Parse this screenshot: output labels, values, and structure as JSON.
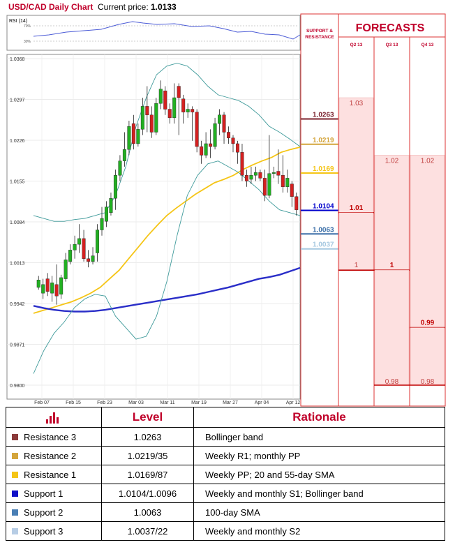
{
  "header": {
    "title": "USD/CAD Daily Chart",
    "price_label": "Current price:",
    "price_value": "1.0133"
  },
  "rsi": {
    "label": "RSI (14)",
    "ticks": [
      "70%",
      "30%"
    ]
  },
  "chart_data": {
    "type": "candlestick",
    "y_ticks": [
      "1.0368",
      "1.0297",
      "1.0226",
      "1.0155",
      "1.0084",
      "1.0013",
      "0.9942",
      "0.9871",
      "0.9800"
    ],
    "ylim": [
      0.98,
      1.0368
    ],
    "x_ticks": [
      "Feb 07",
      "Feb 15",
      "Feb 23",
      "Mar 03",
      "Mar 11",
      "Mar 19",
      "Mar 27",
      "Apr 04",
      "Apr 12"
    ],
    "candles": [
      [
        0.997,
        0.9983,
        0.9966,
        0.999
      ],
      [
        0.996,
        0.9975,
        0.995,
        0.9985
      ],
      [
        0.9985,
        0.9963,
        0.9955,
        0.9995
      ],
      [
        0.996,
        0.9978,
        0.9945,
        0.999
      ],
      [
        0.9975,
        0.9955,
        0.994,
        1.001
      ],
      [
        0.9958,
        0.9987,
        0.995,
        0.9992
      ],
      [
        0.9985,
        1.0018,
        0.998,
        1.003
      ],
      [
        1.0015,
        1.0035,
        1.001,
        1.0045
      ],
      [
        1.0035,
        1.0045,
        1.002,
        1.006
      ],
      [
        1.0045,
        1.0055,
        1.003,
        1.008
      ],
      [
        1.0055,
        1.002,
        1.0015,
        1.007
      ],
      [
        1.002,
        1.0015,
        1.0005,
        1.0035
      ],
      [
        1.0015,
        1.0025,
        1.001,
        1.004
      ],
      [
        1.003,
        1.007,
        1.0015,
        1.008
      ],
      [
        1.007,
        1.009,
        1.006,
        1.011
      ],
      [
        1.0085,
        1.011,
        1.0075,
        1.012
      ],
      [
        1.01,
        1.0125,
        1.0095,
        1.0135
      ],
      [
        1.0125,
        1.0165,
        1.0105,
        1.0175
      ],
      [
        1.0165,
        1.019,
        1.0155,
        1.02
      ],
      [
        1.019,
        1.021,
        1.018,
        1.024
      ],
      [
        1.021,
        1.025,
        1.02,
        1.026
      ],
      [
        1.0255,
        1.022,
        1.021,
        1.027
      ],
      [
        1.022,
        1.0245,
        1.0215,
        1.0255
      ],
      [
        1.0245,
        1.0285,
        1.0235,
        1.03
      ],
      [
        1.0285,
        1.027,
        1.024,
        1.032
      ],
      [
        1.027,
        1.024,
        1.023,
        1.0285
      ],
      [
        1.024,
        1.029,
        1.0235,
        1.03
      ],
      [
        1.029,
        1.0315,
        1.028,
        1.033
      ],
      [
        1.0312,
        1.028,
        1.027,
        1.032
      ],
      [
        1.028,
        1.0265,
        1.0255,
        1.029
      ],
      [
        1.0265,
        1.03,
        1.0255,
        1.0325
      ],
      [
        1.032,
        1.03,
        1.0235,
        1.0325
      ],
      [
        1.0298,
        1.0275,
        1.0255,
        1.0305
      ],
      [
        1.0275,
        1.028,
        1.0265,
        1.029
      ],
      [
        1.028,
        1.0275,
        1.0225,
        1.0285
      ],
      [
        1.0275,
        1.0215,
        1.0205,
        1.028
      ],
      [
        1.0215,
        1.02,
        1.0185,
        1.0225
      ],
      [
        1.02,
        1.022,
        1.0195,
        1.024
      ],
      [
        1.022,
        1.0215,
        1.0195,
        1.0245
      ],
      [
        1.0215,
        1.0255,
        1.021,
        1.0265
      ],
      [
        1.0255,
        1.027,
        1.0235,
        1.028
      ],
      [
        1.027,
        1.024,
        1.022,
        1.0275
      ],
      [
        1.024,
        1.023,
        1.022,
        1.025
      ],
      [
        1.023,
        1.022,
        1.0205,
        1.0235
      ],
      [
        1.022,
        1.0205,
        1.0185,
        1.0225
      ],
      [
        1.0205,
        1.0165,
        1.0155,
        1.022
      ],
      [
        1.0165,
        1.0155,
        1.0145,
        1.0175
      ],
      [
        1.0158,
        1.0165,
        1.015,
        1.018
      ],
      [
        1.0165,
        1.017,
        1.0155,
        1.018
      ],
      [
        1.017,
        1.016,
        1.0155,
        1.0175
      ],
      [
        1.016,
        1.013,
        1.012,
        1.0175
      ],
      [
        1.013,
        1.0168,
        1.0125,
        1.0235
      ],
      [
        1.0168,
        1.017,
        1.016,
        1.018
      ],
      [
        1.0172,
        1.0165,
        1.015,
        1.021
      ],
      [
        1.0165,
        1.0145,
        1.0135,
        1.02
      ],
      [
        1.0145,
        1.016,
        1.0135,
        1.0175
      ],
      [
        1.015,
        1.0128,
        1.011,
        1.0155
      ],
      [
        1.0128,
        1.0105,
        1.0095,
        1.0135
      ]
    ],
    "series": [
      {
        "name": "",
        "color": "#f5c516",
        "values": [
          0.9925,
          0.993,
          0.9935,
          0.994,
          0.9945,
          0.9952,
          0.996,
          0.997,
          0.9985,
          1.0,
          1.002,
          1.004,
          1.006,
          1.0078,
          1.0095,
          1.0108,
          1.012,
          1.0132,
          1.0142,
          1.0152,
          1.0158,
          1.0165,
          1.0175,
          1.0183,
          1.019,
          1.0196,
          1.0205,
          1.021,
          1.0214
        ]
      },
      {
        "name": "",
        "color": "#2a2ec8",
        "values": [
          0.9938,
          0.9934,
          0.9931,
          0.9929,
          0.9928,
          0.9928,
          0.9929,
          0.9931,
          0.9934,
          0.9937,
          0.994,
          0.9943,
          0.9946,
          0.9949,
          0.9952,
          0.9955,
          0.9958,
          0.9962,
          0.9966,
          0.997,
          0.9975,
          0.998,
          0.9985,
          0.9988,
          0.9992,
          0.9998,
          1.0004
        ]
      },
      {
        "name": "",
        "color": "#3e9a9a",
        "values": [
          1.0095,
          1.009,
          1.0085,
          1.0085,
          1.0088,
          1.009,
          1.0095,
          1.01,
          1.013,
          1.018,
          1.025,
          1.03,
          1.034,
          1.0355,
          1.036,
          1.0355,
          1.034,
          1.032,
          1.0305,
          1.03,
          1.0295,
          1.0285,
          1.027,
          1.025,
          1.024,
          1.0228,
          1.0215
        ]
      },
      {
        "name": "",
        "color": "#3e9a9a",
        "values": [
          0.982,
          0.986,
          0.989,
          0.991,
          0.9935,
          0.995,
          0.9958,
          0.9955,
          0.992,
          0.99,
          0.988,
          0.9885,
          0.992,
          0.998,
          1.006,
          1.013,
          1.0165,
          1.0185,
          1.019,
          1.018,
          1.017,
          1.0155,
          1.014,
          1.012,
          1.0105,
          1.01,
          1.0095
        ]
      }
    ],
    "forecast_columns": [
      "Q2 13",
      "Q3 13",
      "Q4 13"
    ],
    "forecasts": [
      {
        "col": 0,
        "high": "1.03",
        "low": "1.01",
        "high_value": 1.03,
        "low_value": 1.01
      },
      {
        "col": 0,
        "high": "",
        "low": "1",
        "high_value": 1.01,
        "low_value": 1.0
      },
      {
        "col": 1,
        "high": "1.02",
        "low": "1",
        "high_value": 1.02,
        "low_value": 1.0
      },
      {
        "col": 1,
        "high": "",
        "low": "0.98",
        "high_value": 1.0,
        "low_value": 0.98
      },
      {
        "col": 2,
        "high": "1.02",
        "low": "0.99",
        "high_value": 1.02,
        "low_value": 0.99
      },
      {
        "col": 2,
        "high": "",
        "low": "0.98",
        "high_value": 0.99,
        "low_value": 0.98
      }
    ]
  },
  "levels_panel": {
    "header": "SUPPORT & RESISTANCE",
    "items": [
      {
        "text": "1.0263",
        "value": 1.0263,
        "color": "#7a1f2b"
      },
      {
        "text": "1.0219",
        "value": 1.0219,
        "color": "#d4a53c"
      },
      {
        "text": "1.0169",
        "value": 1.0169,
        "color": "#f5c516"
      },
      {
        "text": "1.0104",
        "value": 1.0104,
        "color": "#0000cc"
      },
      {
        "text": "1.0063",
        "value": 1.0063,
        "color": "#3b6fa8"
      },
      {
        "text": "1.0037",
        "value": 1.0037,
        "color": "#a6c8e0"
      }
    ]
  },
  "forecasts_title": "FORECASTS",
  "table": {
    "headers": [
      "Level",
      "Rationale"
    ],
    "rows": [
      {
        "label": "Resistance 3",
        "value": "1.0263",
        "rationale": "Bollinger band",
        "color": "#8b3a3a"
      },
      {
        "label": "Resistance 2",
        "value": "1.0219/35",
        "rationale": "Weekly R1; monthly PP",
        "color": "#d4a53c"
      },
      {
        "label": "Resistance 1",
        "value": "1.0169/87",
        "rationale": "Weekly PP; 20 and 55-day SMA",
        "color": "#f5c516"
      },
      {
        "label": "Support 1",
        "value": "1.0104/1.0096",
        "rationale": "Weekly and monthly S1; Bollinger band",
        "color": "#1010c8"
      },
      {
        "label": "Support 2",
        "value": "1.0063",
        "rationale": "100-day SMA",
        "color": "#4a7fb5"
      },
      {
        "label": "Support 3",
        "value": "1.0037/22",
        "rationale": "Weekly and monthly S2",
        "color": "#b7cde5"
      }
    ]
  }
}
